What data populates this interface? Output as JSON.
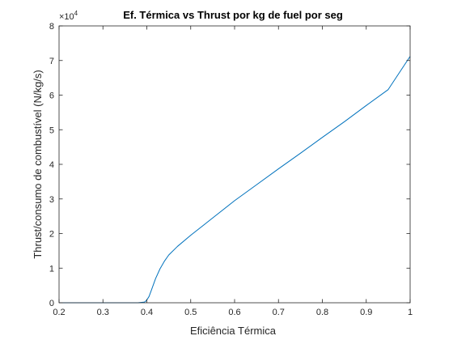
{
  "chart_data": {
    "type": "line",
    "title": "Ef. Térmica vs Thrust por kg de fuel por seg",
    "xlabel": "Eficiência Térmica",
    "ylabel": "Thrust/consumo de combustível (N/kg/s)",
    "xlim": [
      0.2,
      1.0
    ],
    "ylim": [
      0,
      80000
    ],
    "x_ticks": [
      0.2,
      0.3,
      0.4,
      0.5,
      0.6,
      0.7,
      0.8,
      0.9,
      1.0
    ],
    "x_tick_labels": [
      "0.2",
      "0.3",
      "0.4",
      "0.5",
      "0.6",
      "0.7",
      "0.8",
      "0.9",
      "1"
    ],
    "y_ticks": [
      0,
      10000,
      20000,
      30000,
      40000,
      50000,
      60000,
      70000,
      80000
    ],
    "y_tick_labels": [
      "0",
      "1",
      "2",
      "3",
      "4",
      "5",
      "6",
      "7",
      "8"
    ],
    "y_exponent": {
      "base": "×10",
      "power": "4"
    },
    "grid": false,
    "series": [
      {
        "color": "#0072bd",
        "x": [
          0.2,
          0.3,
          0.38,
          0.395,
          0.4,
          0.405,
          0.41,
          0.42,
          0.43,
          0.44,
          0.45,
          0.47,
          0.5,
          0.55,
          0.6,
          0.65,
          0.7,
          0.75,
          0.8,
          0.85,
          0.9,
          0.95,
          1.0
        ],
        "y": [
          0,
          0,
          0,
          200,
          800,
          1800,
          3500,
          7000,
          9800,
          12000,
          13800,
          16300,
          19500,
          24500,
          29500,
          34100,
          38700,
          43200,
          47800,
          52300,
          57000,
          61600,
          71200
        ]
      }
    ]
  }
}
